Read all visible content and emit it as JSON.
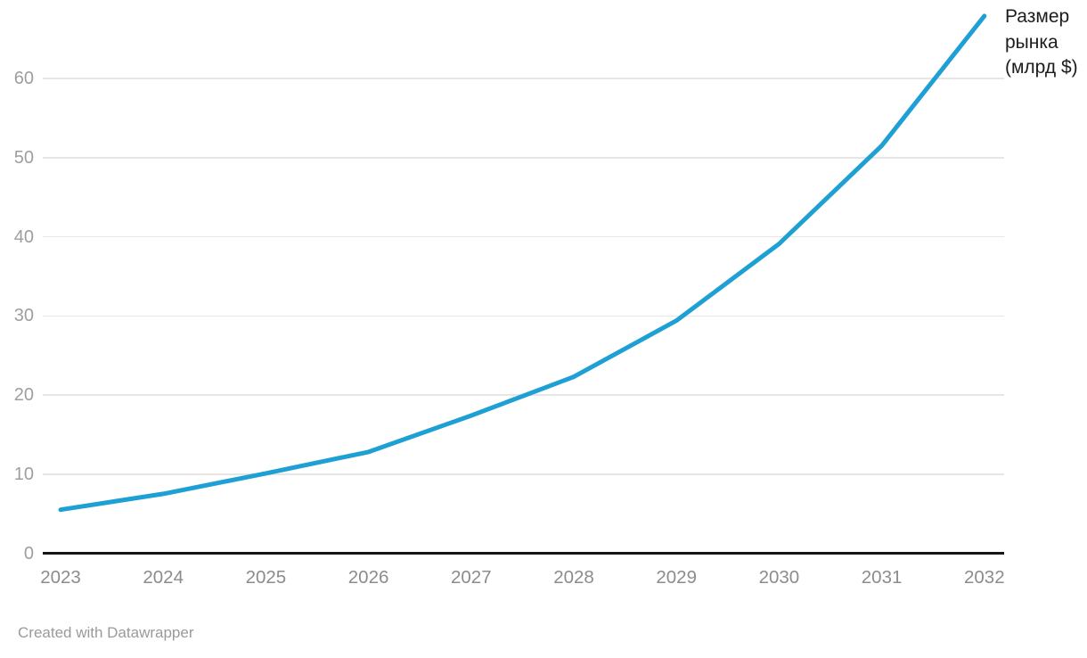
{
  "chart_data": {
    "type": "line",
    "title": "",
    "xlabel": "",
    "ylabel": "",
    "series_label": "Размер рынка (млрд $)",
    "categories": [
      "2023",
      "2024",
      "2025",
      "2026",
      "2027",
      "2028",
      "2029",
      "2030",
      "2031",
      "2032"
    ],
    "series": [
      {
        "name": "Размер рынка (млрд $)",
        "values": [
          5.5,
          7.5,
          10.1,
          12.8,
          17.4,
          22.3,
          29.4,
          39.1,
          51.5,
          67.9
        ]
      }
    ],
    "yticks": [
      0,
      10,
      20,
      30,
      40,
      50,
      60
    ],
    "ylim": [
      0,
      68
    ],
    "grid": "horizontal",
    "legend_position": "line-end-right"
  },
  "colors": {
    "line": "#1fa0d4",
    "gridline": "#e6e6e6",
    "axis_baseline": "#161616",
    "y_tick_text": "#9e9e9e",
    "x_tick_text": "#8c8c8c",
    "label_text": "#1c1c1c",
    "credit_text": "#9a9a9a"
  },
  "footer": {
    "credit": "Created with Datawrapper"
  }
}
